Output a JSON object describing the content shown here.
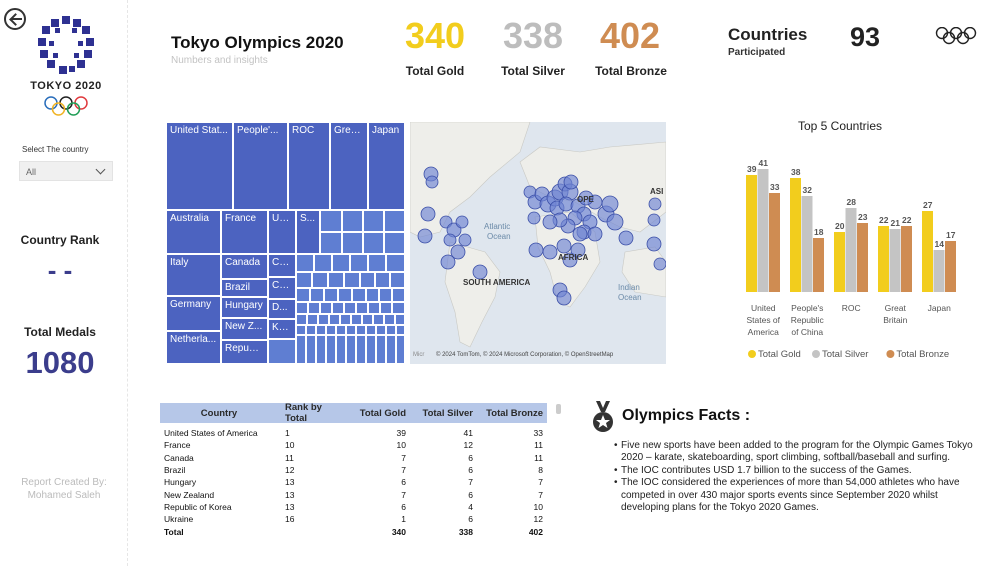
{
  "sidebar": {
    "logo_text": "TOKYO 2020",
    "select_label": "Select The country",
    "select_value": "All",
    "rank_label": "Country Rank",
    "rank_value": "- -",
    "total_label": "Total Medals",
    "total_value": "1080",
    "credit_line1": "Report Created By:",
    "credit_line2": "Mohamed Saleh"
  },
  "header": {
    "title": "Tokyo Olympics 2020",
    "subtitle": "Numbers and insights",
    "kpis": [
      {
        "value": "340",
        "label": "Total Gold",
        "color": "#f2cd1d"
      },
      {
        "value": "338",
        "label": "Total Silver",
        "color": "#bdbdbd"
      },
      {
        "value": "402",
        "label": "Total Bronze",
        "color": "#cf8c52"
      }
    ],
    "countries_label": "Countries",
    "countries_sub": "Participated",
    "countries_value": "93"
  },
  "treemap": {
    "labels": [
      "United Stat...",
      "People'...",
      "ROC",
      "Grea...",
      "Japan",
      "Australia",
      "France",
      "Uk...",
      "S...",
      "Italy",
      "Canada",
      "Ch...",
      "Brazil",
      "Cz...",
      "Germany",
      "Hungary",
      "D...",
      "Ke...",
      "New Z...",
      "Netherla...",
      "Republ..."
    ]
  },
  "map": {
    "labels": [
      "Atlantic",
      "Ocean",
      "SOUTH AMERICA",
      "AFRICA",
      "Indian",
      "Ocean",
      "OPE",
      "ASI"
    ],
    "attribution": "© 2024 TomTom, © 2024 Microsoft Corporation, © OpenStreetMap",
    "brand": "Micr"
  },
  "chart_data": {
    "type": "bar",
    "title": "Top 5 Countries",
    "categories": [
      "United States of America",
      "People's Republic of China",
      "ROC",
      "Great Britain",
      "Japan"
    ],
    "category_lines": [
      [
        "United",
        "States of",
        "America"
      ],
      [
        "People's",
        "Republic",
        "of China"
      ],
      [
        "ROC"
      ],
      [
        "Great",
        "Britain"
      ],
      [
        "Japan"
      ]
    ],
    "series": [
      {
        "name": "Total Gold",
        "color": "#f2cd1d",
        "values": [
          39,
          38,
          20,
          22,
          27
        ]
      },
      {
        "name": "Total Silver",
        "color": "#c4c4c4",
        "values": [
          41,
          32,
          28,
          21,
          14
        ]
      },
      {
        "name": "Total Bronze",
        "color": "#cf8c52",
        "values": [
          33,
          18,
          23,
          22,
          17
        ]
      }
    ],
    "ylim": [
      0,
      45
    ],
    "legend": "bottom"
  },
  "table": {
    "headers": [
      "Country",
      "Rank by Total",
      "Total Gold",
      "Total Silver",
      "Total Bronze"
    ],
    "rows": [
      [
        "United States of America",
        "1",
        "39",
        "41",
        "33"
      ],
      [
        "France",
        "10",
        "10",
        "12",
        "11"
      ],
      [
        "Canada",
        "11",
        "7",
        "6",
        "11"
      ],
      [
        "Brazil",
        "12",
        "7",
        "6",
        "8"
      ],
      [
        "Hungary",
        "13",
        "6",
        "7",
        "7"
      ],
      [
        "New Zealand",
        "13",
        "7",
        "6",
        "7"
      ],
      [
        "Republic of Korea",
        "13",
        "6",
        "4",
        "10"
      ],
      [
        "Ukraine",
        "16",
        "1",
        "6",
        "12"
      ]
    ],
    "total": [
      "Total",
      "",
      "340",
      "338",
      "402"
    ]
  },
  "facts": {
    "title": "Olympics Facts :",
    "items": [
      "Five new sports have been added to the program for the Olympic Games Tokyo 2020 – karate, skateboarding, sport climbing, softball/baseball and surfing.",
      "The IOC contributes USD 1.7 billion to the success of the Games.",
      "The IOC considered the experiences of more than 54,000 athletes who have competed in over 430 major sports events since September 2020 whilst developing plans for the Tokyo 2020 Games."
    ]
  }
}
